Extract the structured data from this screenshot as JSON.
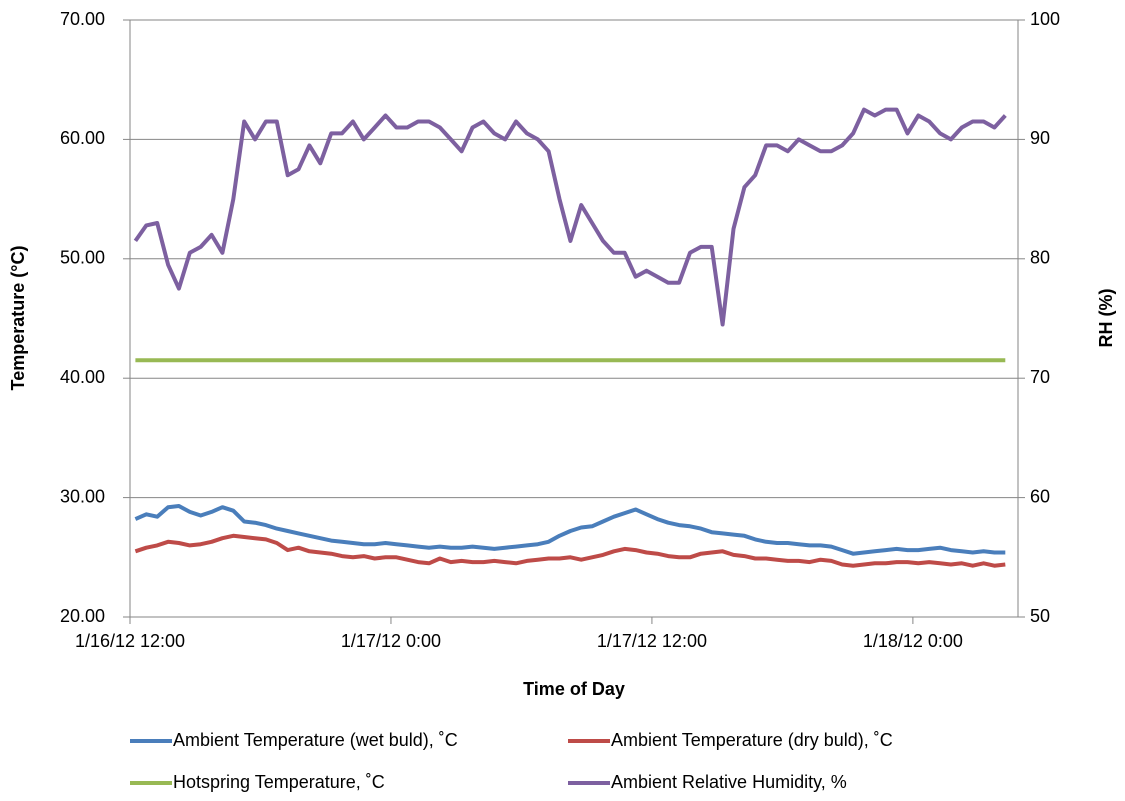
{
  "chart_data": {
    "type": "line",
    "xlabel": "Time of Day",
    "ylabel": "Temperature (°C)",
    "y2label": "RH (%)",
    "x": [
      "1/16/12 12:15",
      "1/16/12 12:45",
      "1/16/12 13:15",
      "1/16/12 13:45",
      "1/16/12 14:15",
      "1/16/12 14:45",
      "1/16/12 15:15",
      "1/16/12 15:45",
      "1/16/12 16:15",
      "1/16/12 16:45",
      "1/16/12 17:15",
      "1/16/12 17:45",
      "1/16/12 18:15",
      "1/16/12 18:45",
      "1/16/12 19:15",
      "1/16/12 19:45",
      "1/16/12 20:15",
      "1/16/12 20:45",
      "1/16/12 21:15",
      "1/16/12 21:45",
      "1/16/12 22:15",
      "1/16/12 22:45",
      "1/16/12 23:15",
      "1/16/12 23:45",
      "1/17/12 0:15",
      "1/17/12 0:45",
      "1/17/12 1:15",
      "1/17/12 1:45",
      "1/17/12 2:15",
      "1/17/12 2:45",
      "1/17/12 3:15",
      "1/17/12 3:45",
      "1/17/12 4:15",
      "1/17/12 4:45",
      "1/17/12 5:15",
      "1/17/12 5:45",
      "1/17/12 6:15",
      "1/17/12 6:45",
      "1/17/12 7:15",
      "1/17/12 7:45",
      "1/17/12 8:15",
      "1/17/12 8:45",
      "1/17/12 9:15",
      "1/17/12 9:45",
      "1/17/12 10:15",
      "1/17/12 10:45",
      "1/17/12 11:15",
      "1/17/12 11:45",
      "1/17/12 12:15",
      "1/17/12 12:45",
      "1/17/12 13:15",
      "1/17/12 13:45",
      "1/17/12 14:15",
      "1/17/12 14:45",
      "1/17/12 15:15",
      "1/17/12 15:45",
      "1/17/12 16:15",
      "1/17/12 16:45",
      "1/17/12 17:15",
      "1/17/12 17:45",
      "1/17/12 18:15",
      "1/17/12 18:45",
      "1/17/12 19:15",
      "1/17/12 19:45",
      "1/17/12 20:15",
      "1/17/12 20:45",
      "1/17/12 21:15",
      "1/17/12 21:45",
      "1/17/12 22:15",
      "1/17/12 22:45",
      "1/17/12 23:15",
      "1/17/12 23:45",
      "1/18/12 0:15",
      "1/18/12 0:45",
      "1/18/12 1:15",
      "1/18/12 1:45",
      "1/18/12 2:15",
      "1/18/12 2:45",
      "1/18/12 3:15",
      "1/18/12 3:45",
      "1/18/12 4:15"
    ],
    "xlim": [
      "1/16/12 12:00",
      "1/18/12 4:50"
    ],
    "xticks": [
      "1/16/12 12:00",
      "1/17/12 0:00",
      "1/17/12 12:00",
      "1/18/12 0:00"
    ],
    "ylim": [
      20,
      70
    ],
    "yticks": [
      {
        "value": 20,
        "label": "20.00"
      },
      {
        "value": 30,
        "label": "30.00"
      },
      {
        "value": 40,
        "label": "40.00"
      },
      {
        "value": 50,
        "label": "50.00"
      },
      {
        "value": 60,
        "label": "60.00"
      },
      {
        "value": 70,
        "label": "70.00"
      }
    ],
    "y2lim": [
      50,
      100
    ],
    "y2ticks": [
      50,
      60,
      70,
      80,
      90,
      100
    ],
    "grid": true,
    "legend": "bottom",
    "series": [
      {
        "name": "Ambient Temperature (wet buld), ˚C",
        "color": "#4a7ebb",
        "values": [
          28.2,
          28.6,
          28.4,
          29.2,
          29.3,
          28.8,
          28.5,
          28.8,
          29.2,
          28.9,
          28.0,
          27.9,
          27.7,
          27.4,
          27.2,
          27.0,
          26.8,
          26.6,
          26.4,
          26.3,
          26.2,
          26.1,
          26.1,
          26.2,
          26.1,
          26.0,
          25.9,
          25.8,
          25.9,
          25.8,
          25.8,
          25.9,
          25.8,
          25.7,
          25.8,
          25.9,
          26.0,
          26.1,
          26.3,
          26.8,
          27.2,
          27.5,
          27.6,
          28.0,
          28.4,
          28.7,
          29.0,
          28.6,
          28.2,
          27.9,
          27.7,
          27.6,
          27.4,
          27.1,
          27.0,
          26.9,
          26.8,
          26.5,
          26.3,
          26.2,
          26.2,
          26.1,
          26.0,
          26.0,
          25.9,
          25.6,
          25.3,
          25.4,
          25.5,
          25.6,
          25.7,
          25.6,
          25.6,
          25.7,
          25.8,
          25.6,
          25.5,
          25.4,
          25.5,
          25.4,
          25.4
        ]
      },
      {
        "name": "Ambient Temperature (dry buld), ˚C",
        "color": "#be4b48",
        "values": [
          25.5,
          25.8,
          26.0,
          26.3,
          26.2,
          26.0,
          26.1,
          26.3,
          26.6,
          26.8,
          26.7,
          26.6,
          26.5,
          26.2,
          25.6,
          25.8,
          25.5,
          25.4,
          25.3,
          25.1,
          25.0,
          25.1,
          24.9,
          25.0,
          25.0,
          24.8,
          24.6,
          24.5,
          24.9,
          24.6,
          24.7,
          24.6,
          24.6,
          24.7,
          24.6,
          24.5,
          24.7,
          24.8,
          24.9,
          24.9,
          25.0,
          24.8,
          25.0,
          25.2,
          25.5,
          25.7,
          25.6,
          25.4,
          25.3,
          25.1,
          25.0,
          25.0,
          25.3,
          25.4,
          25.5,
          25.2,
          25.1,
          24.9,
          24.9,
          24.8,
          24.7,
          24.7,
          24.6,
          24.8,
          24.7,
          24.4,
          24.3,
          24.4,
          24.5,
          24.5,
          24.6,
          24.6,
          24.5,
          24.6,
          24.5,
          24.4,
          24.5,
          24.3,
          24.5,
          24.3,
          24.4
        ]
      },
      {
        "name": "Hotspring Temperature, ˚C",
        "color": "#98b954",
        "values": [
          41.5,
          41.5,
          41.5,
          41.5,
          41.5,
          41.5,
          41.5,
          41.5,
          41.5,
          41.5,
          41.5,
          41.5,
          41.5,
          41.5,
          41.5,
          41.5,
          41.5,
          41.5,
          41.5,
          41.5,
          41.5,
          41.5,
          41.5,
          41.5,
          41.5,
          41.5,
          41.5,
          41.5,
          41.5,
          41.5,
          41.5,
          41.5,
          41.5,
          41.5,
          41.5,
          41.5,
          41.5,
          41.5,
          41.5,
          41.5,
          41.5,
          41.5,
          41.5,
          41.5,
          41.5,
          41.5,
          41.5,
          41.5,
          41.5,
          41.5,
          41.5,
          41.5,
          41.5,
          41.5,
          41.5,
          41.5,
          41.5,
          41.5,
          41.5,
          41.5,
          41.5,
          41.5,
          41.5,
          41.5,
          41.5,
          41.5,
          41.5,
          41.5,
          41.5,
          41.5,
          41.5,
          41.5,
          41.5,
          41.5,
          41.5,
          41.5,
          41.5,
          41.5,
          41.5,
          41.5,
          41.5
        ]
      },
      {
        "name": "Ambient Relative Humidity, %",
        "color": "#7d60a0",
        "axis": "y2",
        "values": [
          81.5,
          82.8,
          83.0,
          79.5,
          77.5,
          80.5,
          81.0,
          82.0,
          80.5,
          85.0,
          91.5,
          90.0,
          91.5,
          91.5,
          87.0,
          87.5,
          89.5,
          88.0,
          90.5,
          90.5,
          91.5,
          90.0,
          91.0,
          92.0,
          91.0,
          91.0,
          91.5,
          91.5,
          91.0,
          90.0,
          89.0,
          91.0,
          91.5,
          90.5,
          90.0,
          91.5,
          90.5,
          90.0,
          89.0,
          85.0,
          81.5,
          84.5,
          83.0,
          81.5,
          80.5,
          80.5,
          78.5,
          79.0,
          78.5,
          78.0,
          78.0,
          80.5,
          81.0,
          81.0,
          74.5,
          82.5,
          86.0,
          87.0,
          89.5,
          89.5,
          89.0,
          90.0,
          89.5,
          89.0,
          89.0,
          89.5,
          90.5,
          92.5,
          92.0,
          92.5,
          92.5,
          90.5,
          92.0,
          91.5,
          90.5,
          90.0,
          91.0,
          91.5,
          91.5,
          91.0,
          92.0
        ]
      }
    ]
  }
}
